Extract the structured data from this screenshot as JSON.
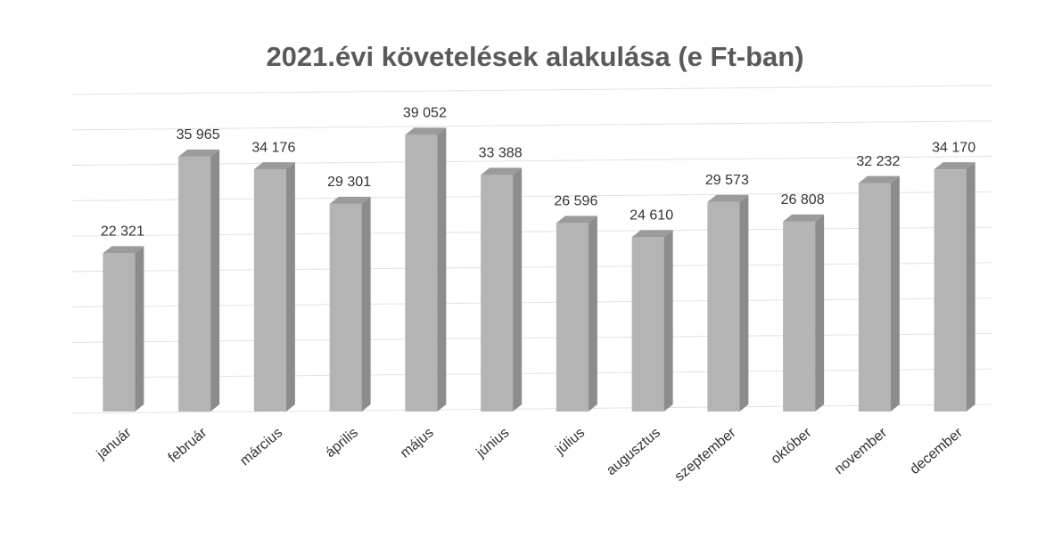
{
  "chart_data": {
    "type": "bar3d",
    "title": "2021.évi követelések alakulása (e Ft-ban)",
    "categories": [
      "január",
      "február",
      "március",
      "április",
      "május",
      "június",
      "július",
      "augusztus",
      "szeptember",
      "október",
      "november",
      "december"
    ],
    "values": [
      22321,
      35965,
      34176,
      29301,
      39052,
      33388,
      26596,
      24610,
      29573,
      26808,
      32232,
      34170
    ],
    "value_labels": [
      "22 321",
      "35 965",
      "34 176",
      "29 301",
      "39 052",
      "33 388",
      "26 596",
      "24 610",
      "29 573",
      "26 808",
      "32 232",
      "34 170"
    ],
    "color": "#b4b4b4",
    "ylim": [
      0,
      45000
    ],
    "yticks": [
      0,
      5000,
      10000,
      15000,
      20000,
      25000,
      30000,
      35000,
      40000,
      45000
    ],
    "grid": true
  }
}
